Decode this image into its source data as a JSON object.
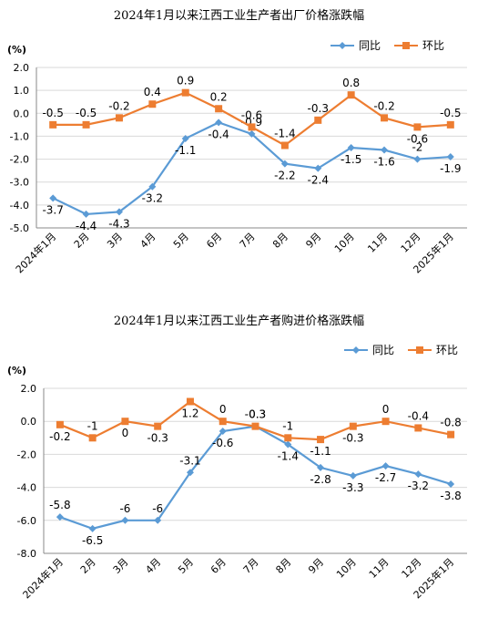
{
  "colors": {
    "yoy": "#5b9bd5",
    "mom": "#ed7d31",
    "grid": "#d9d9d9",
    "axis": "#888888"
  },
  "chart_data": [
    {
      "type": "line",
      "title": "2024年1月以来江西工业生产者出厂价格涨跌幅",
      "unit_label": "(%)",
      "categories": [
        "2024年1月",
        "2月",
        "3月",
        "4月",
        "5月",
        "6月",
        "7月",
        "8月",
        "9月",
        "10月",
        "11月",
        "12月",
        "2025年1月"
      ],
      "ylim": [
        -5.0,
        2.0
      ],
      "yticks": [
        "2.0",
        "1.0",
        "0.0",
        "-1.0",
        "-2.0",
        "-3.0",
        "-4.0",
        "-5.0"
      ],
      "grid": true,
      "legend_position": "top-right",
      "series": [
        {
          "name": "同比",
          "marker": "diamond",
          "values": [
            -3.7,
            -4.4,
            -4.3,
            -3.2,
            -1.1,
            -0.4,
            -0.9,
            -2.2,
            -2.4,
            -1.5,
            -1.6,
            -2,
            -1.9
          ],
          "labels": [
            "-3.7",
            "-4.4",
            "-4.3",
            "-3.2",
            "-1.1",
            "-0.4",
            "-0.9",
            "-2.2",
            "-2.4",
            "-1.5",
            "-1.6",
            "-2",
            "-1.9"
          ]
        },
        {
          "name": "环比",
          "marker": "square",
          "values": [
            -0.5,
            -0.5,
            -0.2,
            0.4,
            0.9,
            0.2,
            -0.6,
            -1.4,
            -0.3,
            0.8,
            -0.2,
            -0.6,
            -0.5
          ],
          "labels": [
            "-0.5",
            "-0.5",
            "-0.2",
            "0.4",
            "0.9",
            "0.2",
            "-0.6",
            "-1.4",
            "-0.3",
            "0.8",
            "-0.2",
            "-0.6",
            "-0.5"
          ]
        }
      ]
    },
    {
      "type": "line",
      "title": "2024年1月以来江西工业生产者购进价格涨跌幅",
      "unit_label": "(%)",
      "categories": [
        "2024年1月",
        "2月",
        "3月",
        "4月",
        "5月",
        "6月",
        "7月",
        "8月",
        "9月",
        "10月",
        "11月",
        "12月",
        "2025年1月"
      ],
      "ylim": [
        -8.0,
        2.0
      ],
      "yticks": [
        "2.0",
        "0.0",
        "-2.0",
        "-4.0",
        "-6.0",
        "-8.0"
      ],
      "grid": true,
      "legend_position": "top-right",
      "series": [
        {
          "name": "同比",
          "marker": "diamond",
          "values": [
            -5.8,
            -6.5,
            -6,
            -6,
            -3.1,
            -0.6,
            -0.3,
            -1.4,
            -2.8,
            -3.3,
            -2.7,
            -3.2,
            -3.8
          ],
          "labels": [
            "-5.8",
            "-6.5",
            "-6",
            "-6",
            "-3.1",
            "-0.6",
            "-0.3",
            "-1.4",
            "-2.8",
            "-3.3",
            "-2.7",
            "-3.2",
            "-3.8"
          ]
        },
        {
          "name": "环比",
          "marker": "square",
          "values": [
            -0.2,
            -1,
            0,
            -0.3,
            1.2,
            0,
            -0.3,
            -1,
            -1.1,
            -0.3,
            0,
            -0.4,
            -0.8
          ],
          "labels": [
            "-0.2",
            "-1",
            "0",
            "-0.3",
            "1.2",
            "0",
            "-0.3",
            "-1",
            "-1.1",
            "-0.3",
            "0",
            "-0.4",
            "-0.8"
          ]
        }
      ]
    }
  ]
}
